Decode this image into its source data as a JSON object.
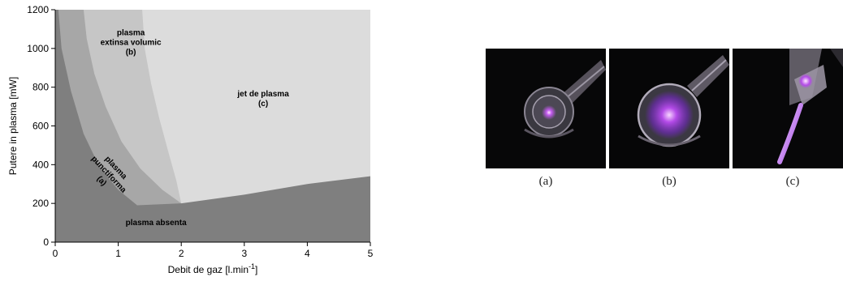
{
  "chart_data": {
    "type": "area",
    "title": "",
    "xlabel": "Debit de gaz [l.min",
    "xlabel_sup": "-1",
    "xlabel_end": "]",
    "ylabel": "Putere in plasma [mW]",
    "xlim": [
      0,
      5
    ],
    "ylim": [
      0,
      1200
    ],
    "x_ticks": [
      "0",
      "1",
      "2",
      "3",
      "4",
      "5"
    ],
    "y_ticks": [
      "0",
      "200",
      "400",
      "600",
      "800",
      "1000",
      "1200"
    ],
    "grid": false,
    "regions": [
      {
        "name": "plasma absenta",
        "label_lines": [
          "plasma absenta"
        ],
        "label_at": [
          1.6,
          100
        ],
        "color": "#7f7f7f",
        "boundary": [
          [
            0.05,
            1200
          ],
          [
            0.1,
            1000
          ],
          [
            0.25,
            780
          ],
          [
            0.45,
            560
          ],
          [
            0.7,
            390
          ],
          [
            1.0,
            270
          ],
          [
            1.3,
            190
          ],
          [
            2.0,
            200
          ],
          [
            3.0,
            245
          ],
          [
            4.0,
            300
          ],
          [
            5.0,
            340
          ]
        ]
      },
      {
        "name": "plasma punctiforma (a)",
        "label_lines": [
          "plasma",
          "punctiforma",
          "(a)"
        ],
        "label_at": [
          0.85,
          350
        ],
        "label_rotate": 47,
        "color": "#a7a7a7",
        "boundary": [
          [
            0.45,
            1200
          ],
          [
            0.5,
            1050
          ],
          [
            0.62,
            870
          ],
          [
            0.8,
            700
          ],
          [
            1.05,
            520
          ],
          [
            1.35,
            380
          ],
          [
            1.7,
            270
          ],
          [
            2.0,
            200
          ]
        ]
      },
      {
        "name": "plasma extinsa volumic (b)",
        "label_lines": [
          "plasma",
          "extinsa volumic",
          "(b)"
        ],
        "label_at": [
          1.2,
          1030
        ],
        "color": "#c6c6c6",
        "boundary": [
          [
            1.38,
            1200
          ],
          [
            1.42,
            1000
          ],
          [
            1.52,
            820
          ],
          [
            1.65,
            640
          ],
          [
            1.8,
            460
          ],
          [
            1.92,
            320
          ],
          [
            2.0,
            200
          ]
        ]
      },
      {
        "name": "jet de plasma (c)",
        "label_lines": [
          "jet de plasma",
          "(c)"
        ],
        "label_at": [
          3.3,
          740
        ],
        "color": "#dcdcdc"
      }
    ]
  },
  "photos": [
    {
      "caption": "(a)",
      "style": "point"
    },
    {
      "caption": "(b)",
      "style": "volume"
    },
    {
      "caption": "(c)",
      "style": "jet"
    }
  ]
}
